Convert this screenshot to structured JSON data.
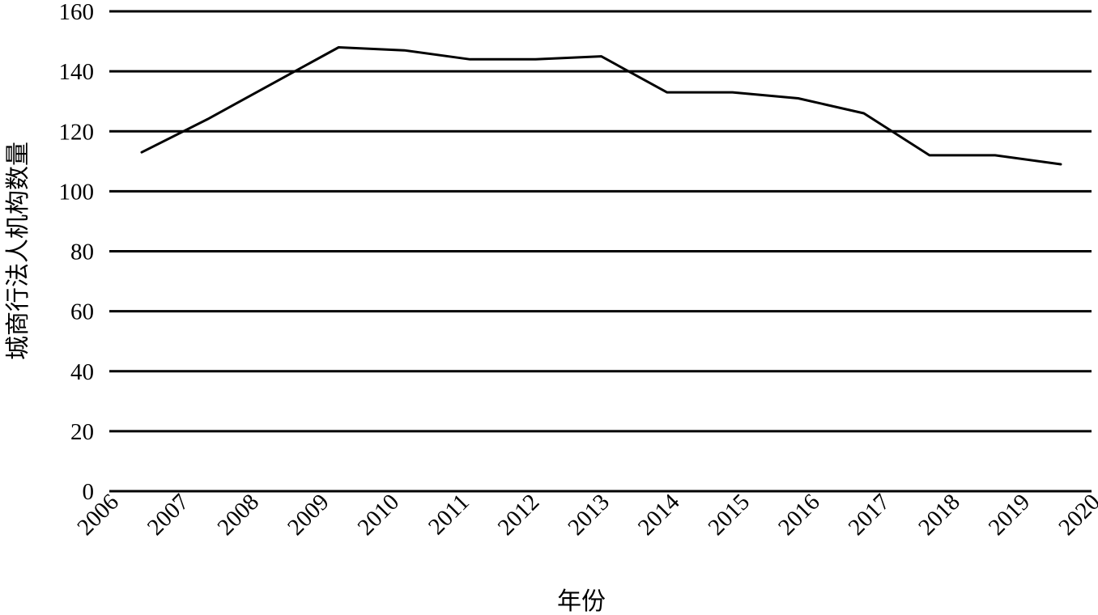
{
  "chart_data": {
    "type": "line",
    "title": "",
    "xlabel": "年份",
    "ylabel": "城商行法人机构数量",
    "ylim": [
      0,
      160
    ],
    "yticks": [
      0,
      20,
      40,
      60,
      80,
      100,
      120,
      140,
      160
    ],
    "grid": true,
    "categories": [
      "2006",
      "2007",
      "2008",
      "2009",
      "2010",
      "2011",
      "2012",
      "2013",
      "2014",
      "2015",
      "2016",
      "2017",
      "2018",
      "2019",
      "2020"
    ],
    "series": [
      {
        "color": "#000000",
        "values": [
          113,
          124,
          136,
          148,
          147,
          144,
          144,
          145,
          133,
          133,
          131,
          126,
          112,
          112,
          109
        ]
      }
    ]
  }
}
